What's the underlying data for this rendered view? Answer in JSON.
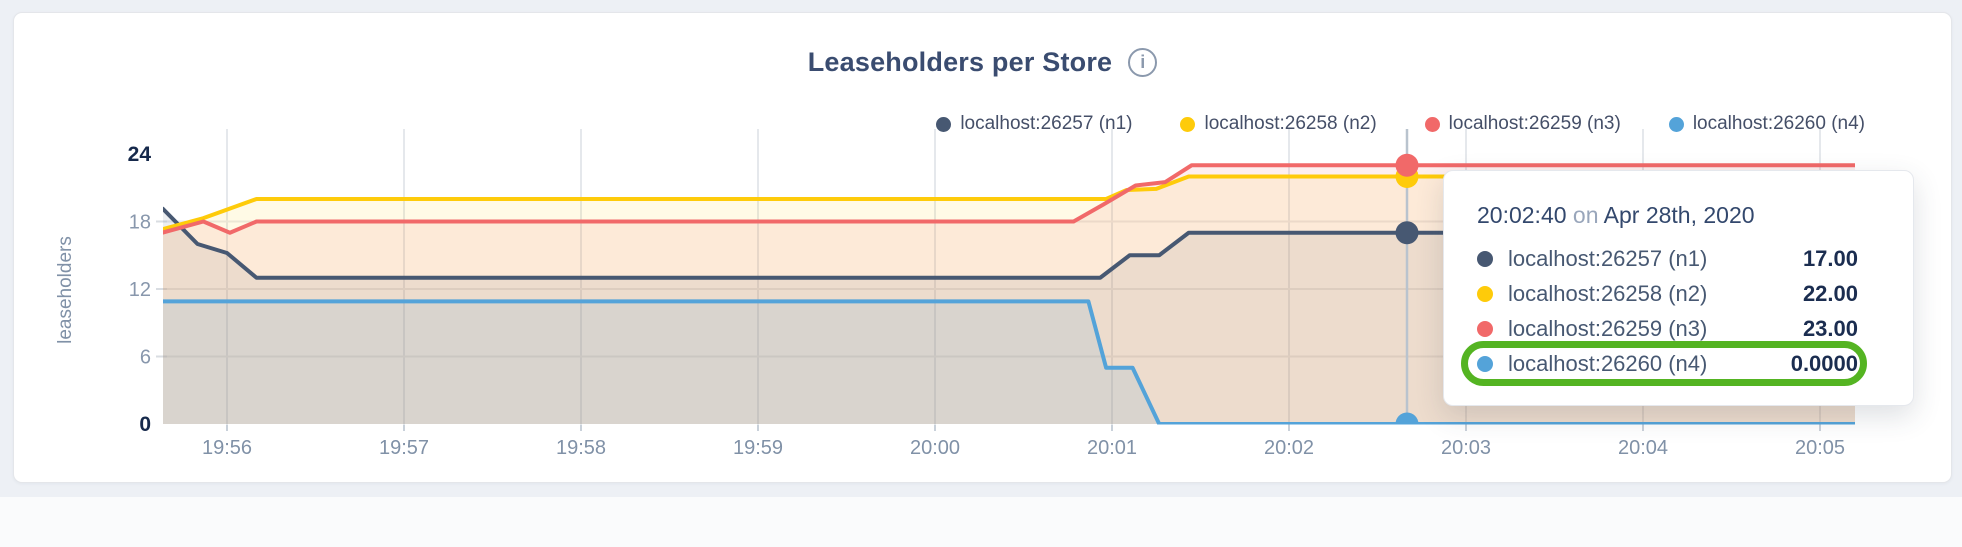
{
  "header": {
    "title": "Leaseholders per Store",
    "info_icon": "i"
  },
  "legend": {
    "items": [
      {
        "label": "localhost:26257 (n1)",
        "color": "#475872",
        "node": "n1"
      },
      {
        "label": "localhost:26258 (n2)",
        "color": "#FECB0A",
        "node": "n2"
      },
      {
        "label": "localhost:26259 (n3)",
        "color": "#F16969",
        "node": "n3"
      },
      {
        "label": "localhost:26260 (n4)",
        "color": "#54A3D9",
        "node": "n4"
      }
    ]
  },
  "chart_data": {
    "type": "area",
    "title": "Leaseholders per Store",
    "xlabel": "",
    "ylabel": "leaseholders",
    "ylim": [
      0,
      24
    ],
    "y_ticks": [
      0,
      6,
      12,
      18,
      24
    ],
    "y_gridlines": [
      6,
      12,
      18
    ],
    "x_ticks": [
      "19:56",
      "19:57",
      "19:58",
      "19:59",
      "20:00",
      "20:01",
      "20:02",
      "20:03",
      "20:04",
      "20:05"
    ],
    "x_range": [
      "19:55:38",
      "20:05:12"
    ],
    "grid": true,
    "legend_position": "top-right",
    "date": "Apr 28th, 2020",
    "series": [
      {
        "name": "localhost:26257 (n1)",
        "color": "#475872",
        "fill_opacity": 0.1,
        "points": [
          [
            "19:55:38",
            19.2
          ],
          [
            "19:55:50",
            16
          ],
          [
            "19:56:00",
            15.2
          ],
          [
            "19:56:10",
            13
          ],
          [
            "20:00:56",
            13
          ],
          [
            "20:01:06",
            15
          ],
          [
            "20:01:16",
            15
          ],
          [
            "20:01:26",
            17
          ],
          [
            "20:05:12",
            17
          ]
        ]
      },
      {
        "name": "localhost:26258 (n2)",
        "color": "#FECB0A",
        "fill_opacity": 0.1,
        "points": [
          [
            "19:55:38",
            17.3
          ],
          [
            "19:55:52",
            18.3
          ],
          [
            "19:56:10",
            20
          ],
          [
            "20:00:58",
            20
          ],
          [
            "20:01:05",
            20.8
          ],
          [
            "20:01:15",
            20.9
          ],
          [
            "20:01:26",
            22
          ],
          [
            "20:05:12",
            22
          ]
        ]
      },
      {
        "name": "localhost:26259 (n3)",
        "color": "#F16969",
        "fill_opacity": 0.11,
        "points": [
          [
            "19:55:38",
            17
          ],
          [
            "19:55:52",
            18
          ],
          [
            "19:56:01",
            17
          ],
          [
            "19:56:10",
            18
          ],
          [
            "20:00:47",
            18
          ],
          [
            "20:00:57",
            19.5
          ],
          [
            "20:01:08",
            21.2
          ],
          [
            "20:01:18",
            21.5
          ],
          [
            "20:01:27",
            23
          ],
          [
            "20:05:12",
            23
          ]
        ]
      },
      {
        "name": "localhost:26260 (n4)",
        "color": "#54A3D9",
        "fill_opacity": 0.13,
        "points": [
          [
            "19:55:38",
            10.9
          ],
          [
            "20:00:52",
            10.9
          ],
          [
            "20:00:58",
            5
          ],
          [
            "20:01:07",
            5
          ],
          [
            "20:01:16",
            0
          ],
          [
            "20:05:12",
            0
          ]
        ]
      }
    ],
    "hover": {
      "time": "20:02:40",
      "values": [
        {
          "series": "localhost:26257 (n1)",
          "value": 17
        },
        {
          "series": "localhost:26258 (n2)",
          "value": 22
        },
        {
          "series": "localhost:26259 (n3)",
          "value": 23
        },
        {
          "series": "localhost:26260 (n4)",
          "value": 0
        }
      ]
    }
  },
  "tooltip": {
    "time": "20:02:40",
    "connector": "on",
    "date": "Apr 28th, 2020",
    "rows": [
      {
        "series": "localhost:26257 (n1)",
        "value": "17.00",
        "node": "n1",
        "highlighted": false
      },
      {
        "series": "localhost:26258 (n2)",
        "value": "22.00",
        "node": "n2",
        "highlighted": false
      },
      {
        "series": "localhost:26259 (n3)",
        "value": "23.00",
        "node": "n3",
        "highlighted": false
      },
      {
        "series": "localhost:26260 (n4)",
        "value": "0.0000",
        "node": "n4",
        "highlighted": true
      }
    ]
  },
  "colors": {
    "highlight_ring": "#54b422",
    "hover_line": "#b9c3ce",
    "axis_text": "#8091a7",
    "axis_text_strong": "#16294b",
    "grid_line": "#e7e9ec"
  }
}
